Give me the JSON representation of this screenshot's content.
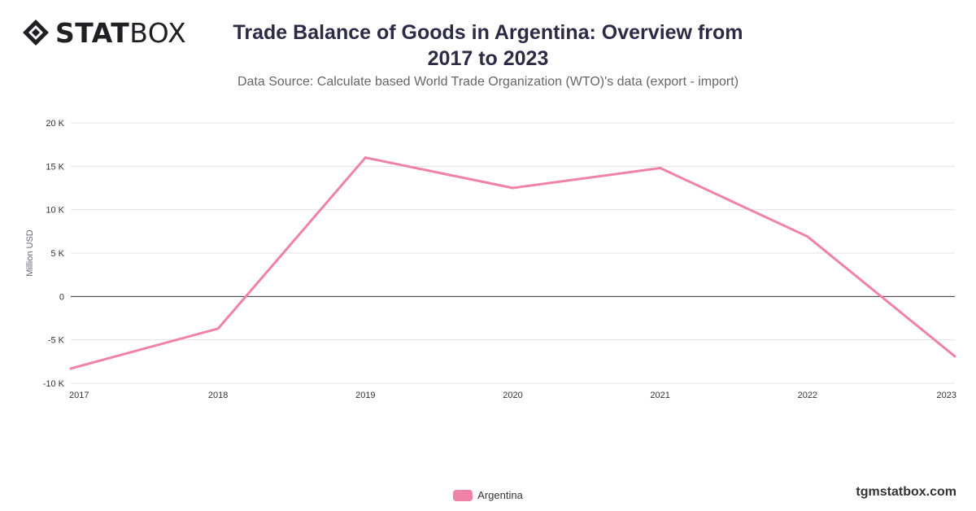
{
  "brand": {
    "logo_bold": "STAT",
    "logo_light": "BOX",
    "watermark": "tgmstatbox.com"
  },
  "header": {
    "title_line1": "Trade Balance of Goods in Argentina: Overview from",
    "title_line2": "2017 to 2023",
    "subtitle": "Data Source: Calculate based World Trade Organization (WTO)'s data (export - import)"
  },
  "chart_data": {
    "type": "line",
    "title": "Trade Balance of Goods in Argentina: Overview from 2017 to 2023",
    "subtitle": "Data Source: Calculate based World Trade Organization (WTO)'s data (export - import)",
    "ylabel": "Million USD",
    "xlabel": "",
    "x": [
      "2017",
      "2018",
      "2019",
      "2020",
      "2021",
      "2022",
      "2023"
    ],
    "series": [
      {
        "name": "Argentina",
        "color": "#f082a8",
        "values": [
          -8300,
          -3700,
          16000,
          12500,
          14800,
          6900,
          -6900
        ]
      }
    ],
    "ylim": [
      -10000,
      20000
    ],
    "yticks": [
      {
        "value": 20000,
        "label": "20 K"
      },
      {
        "value": 15000,
        "label": "15 K"
      },
      {
        "value": 10000,
        "label": "10 K"
      },
      {
        "value": 5000,
        "label": "5 K"
      },
      {
        "value": 0,
        "label": "0"
      },
      {
        "value": -5000,
        "label": "-5 K"
      },
      {
        "value": -10000,
        "label": "-10 K"
      }
    ],
    "grid": true,
    "legend_position": "bottom-center"
  }
}
